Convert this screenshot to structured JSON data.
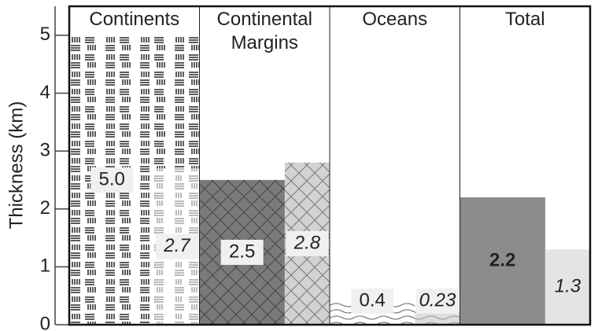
{
  "chart_data": {
    "type": "bar",
    "y_label": "Thickness (km)",
    "categories": [
      "Continents",
      "Continental Margins",
      "Oceans",
      "Total"
    ],
    "series": [
      {
        "colors": [
          "#ffffff",
          "#7a7a7a",
          "#ffffff",
          "#8c8c8c"
        ],
        "values": [
          5.0,
          2.5,
          0.4,
          2.2
        ],
        "value_labels": [
          "5.0",
          "2.5",
          "0.4",
          "2.2"
        ]
      },
      {
        "colors": [
          "#ffffff",
          "#d2d2d2",
          "#ffffff",
          "#e4e4e4"
        ],
        "values": [
          2.7,
          2.8,
          0.23,
          1.3
        ],
        "value_labels": [
          "2.7",
          "2.8",
          "0.23",
          "1.3"
        ]
      }
    ],
    "ylim": [
      0,
      5.5
    ],
    "yticks": [
      0,
      1,
      2,
      3,
      4,
      5
    ]
  }
}
